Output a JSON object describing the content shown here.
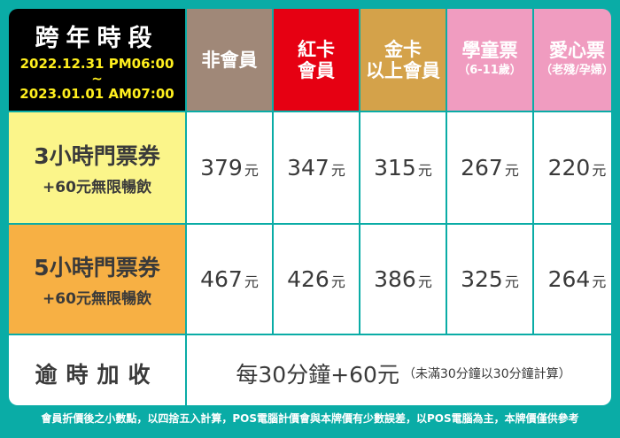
{
  "header": {
    "period_title": "跨年時段",
    "period_start": "2022.12.31  PM06:00",
    "period_sep": "~",
    "period_end": "2023.01.01  AM07:00",
    "columns": [
      {
        "line1": "非會員",
        "line2": "",
        "color": "#a08878"
      },
      {
        "line1": "紅卡",
        "line2": "會員",
        "color": "#e60012"
      },
      {
        "line1": "金卡",
        "line2": "以上會員",
        "color": "#d4a24a"
      },
      {
        "line1": "學童票",
        "line2": "（6-11歲）",
        "color": "#f09cc0"
      },
      {
        "line1": "愛心票",
        "line2": "（老殘/孕婦）",
        "color": "#f09cc0"
      }
    ]
  },
  "rows": [
    {
      "label": "3小時門票券",
      "sub": "+60元無限暢飲",
      "color": "#fbf58a",
      "prices": [
        "379",
        "347",
        "315",
        "267",
        "220"
      ]
    },
    {
      "label": "5小時門票券",
      "sub": "+60元無限暢飲",
      "color": "#f7b044",
      "prices": [
        "467",
        "426",
        "386",
        "325",
        "264"
      ]
    }
  ],
  "currency": "元",
  "overtime": {
    "label": "逾時加收",
    "main": "每30分鐘+60元",
    "note": "（未滿30分鐘以30分鐘計算）"
  },
  "footnote": "會員折價後之小數點，以四捨五入計算，POS電腦計價會與本牌價有少數誤差，以POS電腦為主，本牌價僅供參考"
}
